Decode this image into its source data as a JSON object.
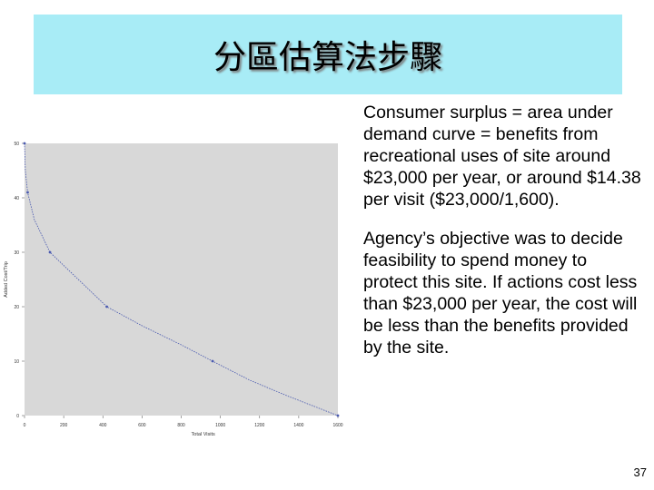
{
  "slide": {
    "title": "分區估算法步驟",
    "paragraphs": [
      "Consumer surplus = area under demand curve = benefits from recreational uses of site around $23,000 per year, or around $14.38 per visit ($23,000/1,600).",
      "Agency’s objective was to decide feasibility to spend money to protect this site.  If actions cost less than $23,000 per year, the cost will be less than the benefits provided by the site."
    ],
    "page_number": "37"
  },
  "colors": {
    "title_bg": "#a8ecf6",
    "plot_bg": "#d8d8d8",
    "line": "#4a5ab0"
  },
  "chart_data": {
    "type": "line",
    "xlabel": "Total Visits",
    "ylabel": "Added Cost/Trip",
    "xlim": [
      0,
      1600
    ],
    "ylim": [
      0,
      50
    ],
    "xticks": [
      "0",
      "200",
      "400",
      "600",
      "800",
      "1000",
      "1200",
      "1400",
      "1600"
    ],
    "yticks": [
      "0",
      "10",
      "20",
      "30",
      "40",
      "50"
    ],
    "series": [
      {
        "points": [
          [
            0,
            50
          ],
          [
            4,
            45
          ],
          [
            16,
            41
          ],
          [
            50,
            36
          ],
          [
            130,
            30
          ],
          [
            260,
            25.5
          ],
          [
            420,
            20
          ],
          [
            600,
            16.5
          ],
          [
            800,
            13
          ],
          [
            960,
            10
          ],
          [
            1150,
            6.5
          ],
          [
            1350,
            3.5
          ],
          [
            1600,
            0
          ]
        ],
        "markers": [
          [
            0,
            50
          ],
          [
            16,
            41
          ],
          [
            130,
            30
          ],
          [
            420,
            20
          ],
          [
            960,
            10
          ],
          [
            1600,
            0
          ]
        ]
      }
    ]
  }
}
